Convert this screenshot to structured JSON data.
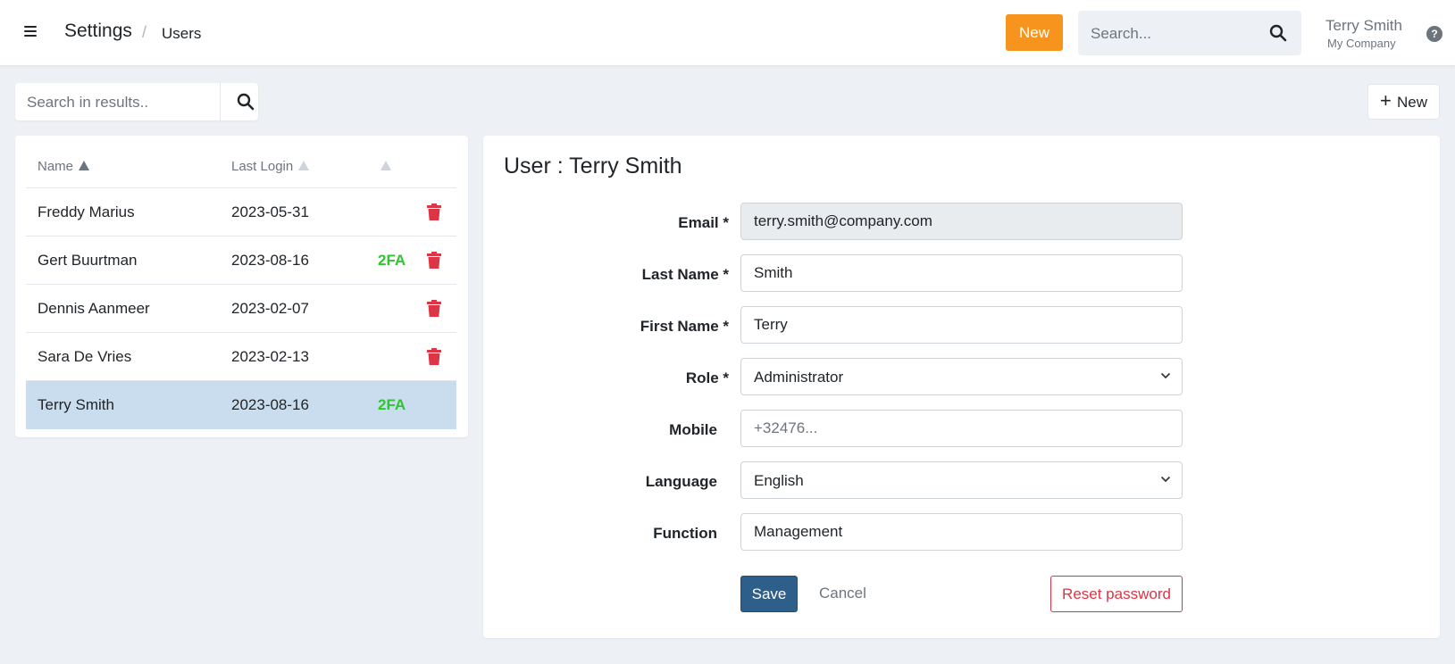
{
  "header": {
    "breadcrumb": {
      "root": "Settings",
      "separator": "/",
      "current": "Users"
    },
    "new_label": "New",
    "search_placeholder": "Search...",
    "user": {
      "name": "Terry Smith",
      "company": "My Company"
    },
    "help_label": "?"
  },
  "toolbar": {
    "search_placeholder": "Search in results..",
    "new_label": "New",
    "new_icon": "plus-icon"
  },
  "users_table": {
    "columns": [
      "Name",
      "Last Login",
      ""
    ],
    "rows": [
      {
        "name": "Freddy Marius",
        "last_login": "2023-05-31",
        "twofa": ""
      },
      {
        "name": "Gert Buurtman",
        "last_login": "2023-08-16",
        "twofa": "2FA"
      },
      {
        "name": "Dennis Aanmeer",
        "last_login": "2023-02-07",
        "twofa": ""
      },
      {
        "name": "Sara De Vries",
        "last_login": "2023-02-13",
        "twofa": ""
      },
      {
        "name": "Terry Smith",
        "last_login": "2023-08-16",
        "twofa": "2FA",
        "selected": true
      }
    ]
  },
  "form": {
    "title": "User : Terry Smith",
    "fields": {
      "email": {
        "label": "Email *",
        "value": "terry.smith@company.com"
      },
      "last_name": {
        "label": "Last Name *",
        "value": "Smith"
      },
      "first_name": {
        "label": "First Name *",
        "value": "Terry"
      },
      "role": {
        "label": "Role *",
        "value": "Administrator"
      },
      "mobile": {
        "label": "Mobile",
        "value": "",
        "placeholder": "+32476..."
      },
      "language": {
        "label": "Language",
        "value": "English"
      },
      "function": {
        "label": "Function",
        "value": "Management"
      }
    },
    "buttons": {
      "save": "Save",
      "cancel": "Cancel",
      "reset": "Reset password"
    }
  },
  "colors": {
    "accent_orange": "#f7941d",
    "primary_blue": "#2d5f8a",
    "danger_red": "#dc3545",
    "twofa_green": "#2fc52f",
    "selected_row": "#c9ddee",
    "background": "#edf0f4"
  }
}
